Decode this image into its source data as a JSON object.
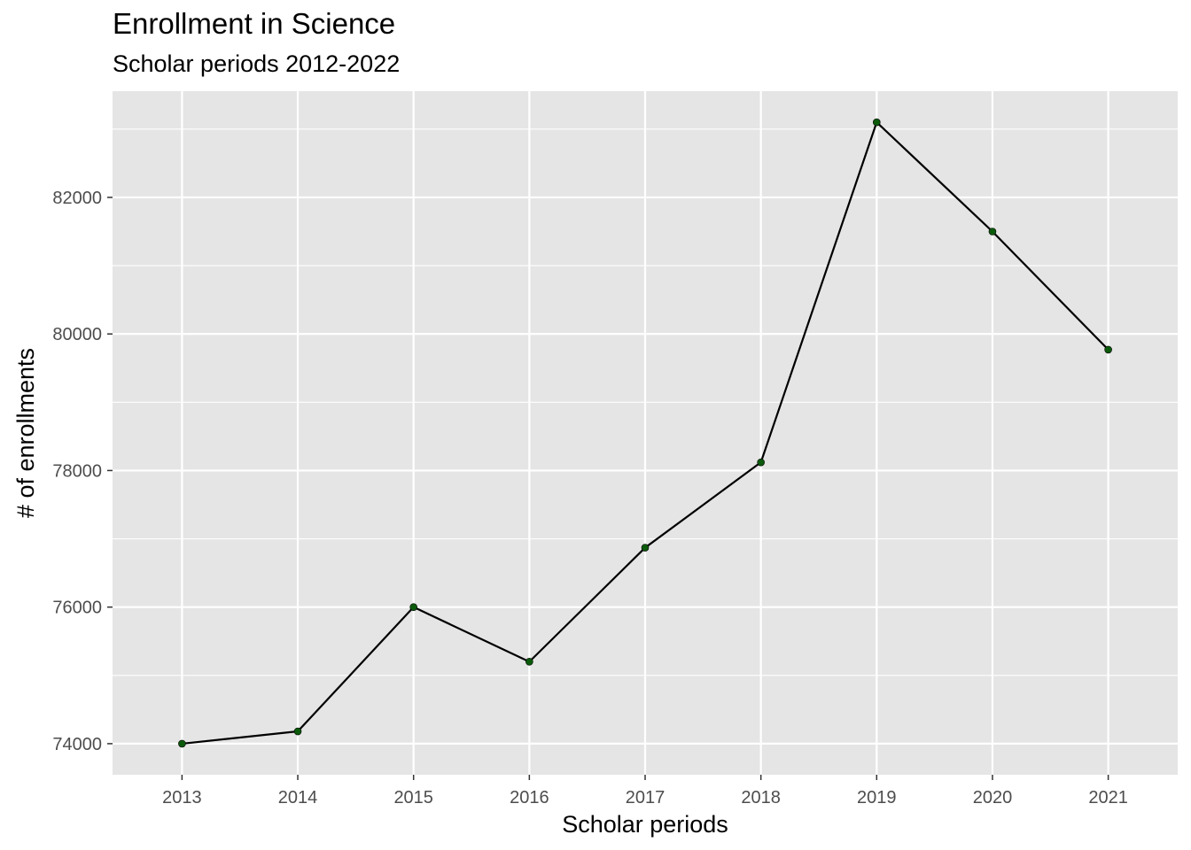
{
  "chart_data": {
    "type": "line",
    "title": "Enrollment in Science",
    "subtitle": "Scholar periods 2012-2022",
    "xlabel": "Scholar periods",
    "ylabel": "# of enrollments",
    "x": [
      2013,
      2014,
      2015,
      2016,
      2017,
      2018,
      2019,
      2020,
      2021
    ],
    "series": [
      {
        "values": [
          74000,
          74180,
          76000,
          75200,
          76870,
          78120,
          83100,
          81500,
          79770
        ]
      }
    ],
    "x_ticks": [
      "2013",
      "2014",
      "2015",
      "2016",
      "2017",
      "2018",
      "2019",
      "2020",
      "2021"
    ],
    "y_ticks": [
      74000,
      76000,
      78000,
      80000,
      82000
    ],
    "y_tick_labels": [
      "74000",
      "76000",
      "78000",
      "80000",
      "82000"
    ],
    "xlim": [
      2012.4,
      2021.6
    ],
    "ylim": [
      73545,
      83555
    ],
    "grid": true,
    "colors": {
      "panel_background": "#e5e5e5",
      "grid": "#ffffff",
      "line": "#000000",
      "point": "#0b5a0b",
      "tick_text": "#4d4d4d",
      "tick_mark": "#333333"
    }
  }
}
